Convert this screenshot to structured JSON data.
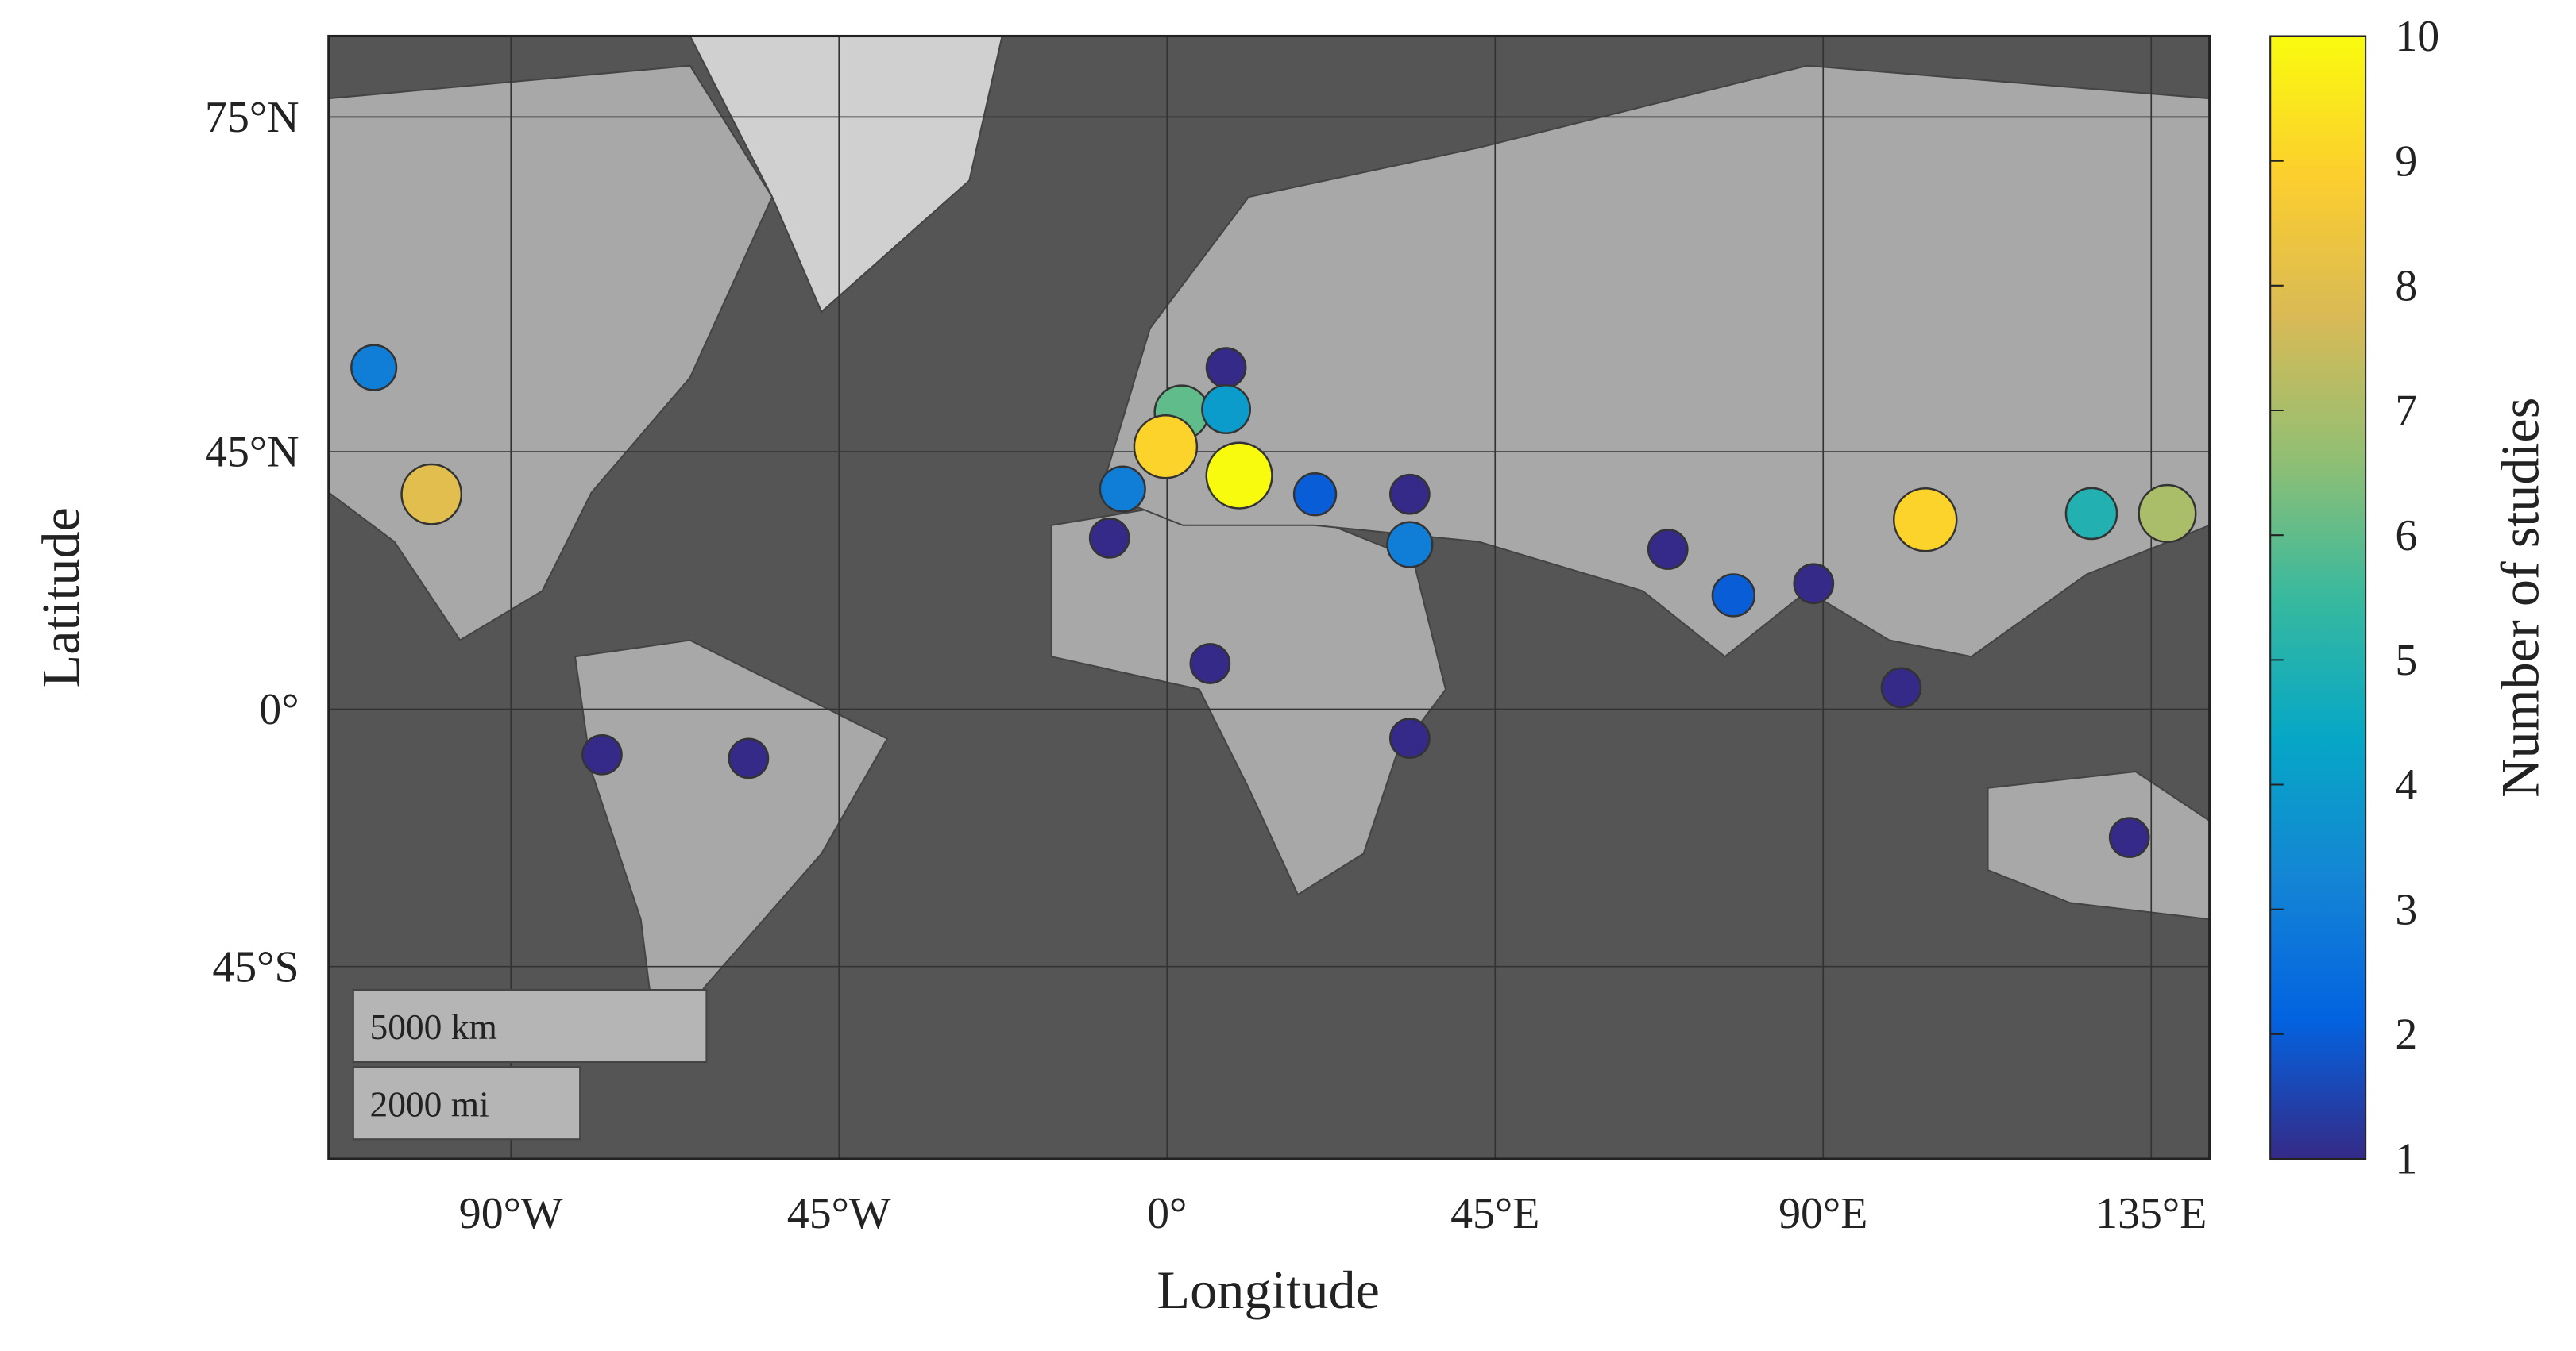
{
  "chart_data": {
    "type": "bubble-map",
    "projection": "mercator",
    "xlabel": "Longitude",
    "ylabel": "Latitude",
    "colorbar_label": "Number of studies",
    "xlim": [
      -115,
      143
    ],
    "ylim": [
      -65.8,
      78.6
    ],
    "xticks": [
      {
        "value": -90,
        "label": "90°W"
      },
      {
        "value": -45,
        "label": "45°W"
      },
      {
        "value": 0,
        "label": "0°"
      },
      {
        "value": 45,
        "label": "45°E"
      },
      {
        "value": 90,
        "label": "90°E"
      },
      {
        "value": 135,
        "label": "135°E"
      }
    ],
    "yticks": [
      {
        "value": -45,
        "label": "45°S"
      },
      {
        "value": 0,
        "label": "0°"
      },
      {
        "value": 45,
        "label": "45°N"
      },
      {
        "value": 75,
        "label": "75°N"
      }
    ],
    "grid": true,
    "clim": [
      1,
      10
    ],
    "cticks": [
      1,
      2,
      3,
      4,
      5,
      6,
      7,
      8,
      9,
      10
    ],
    "colormap": [
      "#352a87",
      "#0363e1",
      "#1485d4",
      "#06a7c6",
      "#38b99e",
      "#92bf73",
      "#d9ba56",
      "#fcce2e",
      "#f9fb0e"
    ],
    "x": [
      -108.8,
      -100.9,
      -77.5,
      -57.4,
      8.1,
      2.0,
      8.1,
      -0.2,
      9.9,
      -6.1,
      20.3,
      33.3,
      -7.9,
      33.3,
      68.7,
      77.7,
      88.7,
      104,
      126.8,
      137.2,
      5.9,
      33.3,
      100.7,
      132
    ],
    "y": [
      55.5,
      38.8,
      -8.9,
      -9.6,
      55.5,
      50.2,
      50.6,
      45.7,
      41.6,
      39.6,
      38.8,
      38.8,
      31.8,
      30.7,
      29.9,
      21.8,
      23.9,
      34.8,
      35.8,
      35.8,
      8.9,
      -5.7,
      4.2,
      -24.4
    ],
    "values": [
      3,
      8,
      1,
      1,
      1,
      6,
      4,
      9,
      10,
      3,
      2,
      1,
      1,
      3,
      1,
      2,
      1,
      9,
      5,
      7,
      1,
      1,
      1,
      1
    ],
    "scale_bar": [
      "5000 km",
      "2000 mi"
    ]
  }
}
